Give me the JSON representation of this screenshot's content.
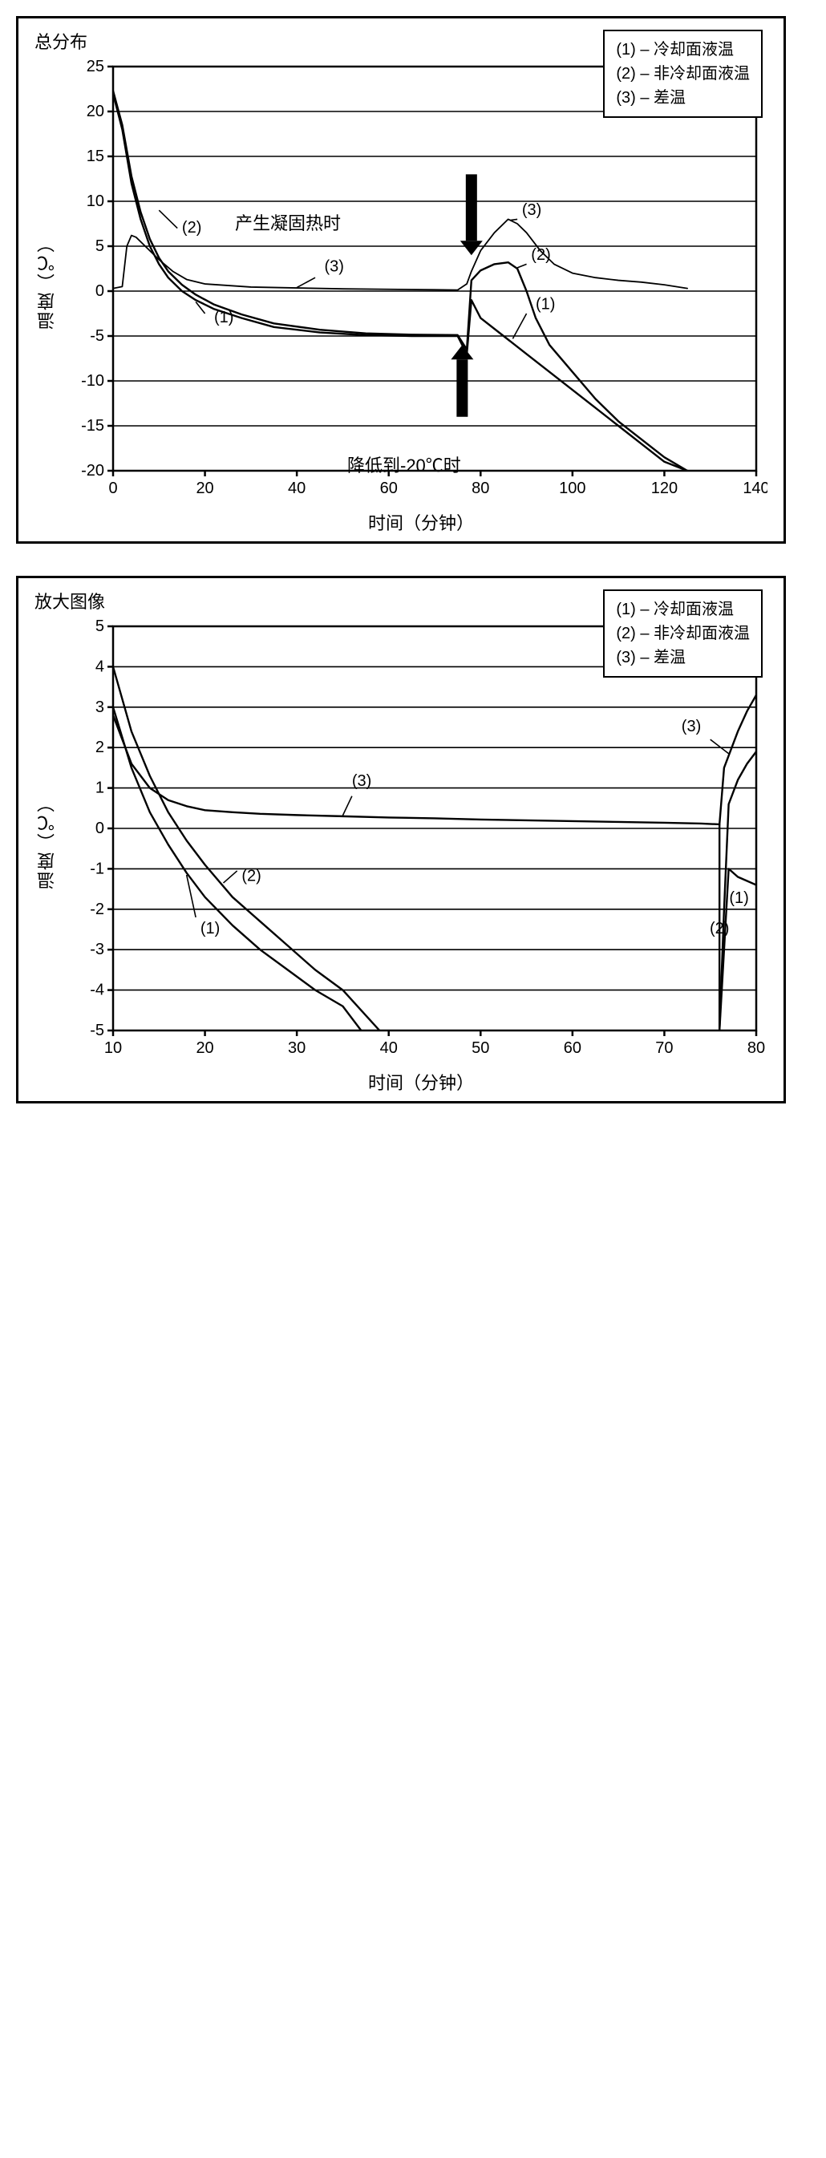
{
  "colors": {
    "axis": "#000000",
    "grid": "#000000",
    "series": "#000000",
    "bg": "#ffffff"
  },
  "stroke": {
    "axis": 2.5,
    "grid": 1.6,
    "series": 2.4,
    "series3_top": 1.8
  },
  "chart_top": {
    "title": "总分布",
    "xlabel": "时间（分钟）",
    "ylabel": "温度（℃）",
    "xlim": [
      0,
      140
    ],
    "xtick_step": 20,
    "ylim": [
      -20,
      25
    ],
    "ytick_step": 5,
    "legend": {
      "items": [
        "(1) – 冷却面液温",
        "(2) – 非冷却面液温",
        "(3) – 差温"
      ]
    },
    "annotations": {
      "a1": "产生凝固热时",
      "a2": "降低到-20℃时"
    },
    "series_labels": {
      "s1a": "(1)",
      "s1b": "(1)",
      "s2a": "(2)",
      "s2b": "(2)",
      "s3a": "(3)",
      "s3b": "(3)"
    },
    "series1": [
      [
        0,
        22
      ],
      [
        2,
        18
      ],
      [
        4,
        12
      ],
      [
        6,
        8
      ],
      [
        8,
        5
      ],
      [
        10,
        3
      ],
      [
        12,
        1.5
      ],
      [
        15,
        0
      ],
      [
        18,
        -1
      ],
      [
        22,
        -2
      ],
      [
        28,
        -3
      ],
      [
        35,
        -4
      ],
      [
        45,
        -4.6
      ],
      [
        55,
        -4.9
      ],
      [
        65,
        -5
      ],
      [
        75,
        -5
      ],
      [
        77,
        -7
      ],
      [
        78,
        -1
      ],
      [
        80,
        -3
      ],
      [
        85,
        -5
      ],
      [
        90,
        -7
      ],
      [
        95,
        -9
      ],
      [
        100,
        -11
      ],
      [
        105,
        -13
      ],
      [
        110,
        -15
      ],
      [
        115,
        -17
      ],
      [
        120,
        -19
      ],
      [
        125,
        -20
      ]
    ],
    "series2": [
      [
        0,
        22.3
      ],
      [
        2,
        18.5
      ],
      [
        4,
        12.8
      ],
      [
        6,
        8.8
      ],
      [
        8,
        5.8
      ],
      [
        10,
        3.7
      ],
      [
        12,
        2.2
      ],
      [
        15,
        0.7
      ],
      [
        18,
        -0.4
      ],
      [
        22,
        -1.5
      ],
      [
        28,
        -2.6
      ],
      [
        35,
        -3.6
      ],
      [
        45,
        -4.3
      ],
      [
        55,
        -4.7
      ],
      [
        65,
        -4.85
      ],
      [
        75,
        -4.9
      ],
      [
        77,
        -6.5
      ],
      [
        78,
        1.2
      ],
      [
        80,
        2.3
      ],
      [
        83,
        3
      ],
      [
        86,
        3.2
      ],
      [
        88,
        2.5
      ],
      [
        90,
        0
      ],
      [
        92,
        -3
      ],
      [
        95,
        -6
      ],
      [
        100,
        -9
      ],
      [
        105,
        -12
      ],
      [
        110,
        -14.5
      ],
      [
        115,
        -16.5
      ],
      [
        120,
        -18.5
      ],
      [
        125,
        -20
      ]
    ],
    "series3": [
      [
        0,
        0.3
      ],
      [
        2,
        0.5
      ],
      [
        3,
        5
      ],
      [
        4,
        6.2
      ],
      [
        5,
        6
      ],
      [
        7,
        5
      ],
      [
        10,
        3.5
      ],
      [
        13,
        2.2
      ],
      [
        16,
        1.3
      ],
      [
        20,
        0.8
      ],
      [
        30,
        0.45
      ],
      [
        40,
        0.35
      ],
      [
        50,
        0.25
      ],
      [
        60,
        0.2
      ],
      [
        70,
        0.15
      ],
      [
        75,
        0.12
      ],
      [
        77,
        0.8
      ],
      [
        78,
        2.2
      ],
      [
        80,
        4.5
      ],
      [
        83,
        6.5
      ],
      [
        86,
        8
      ],
      [
        88,
        7.5
      ],
      [
        90,
        6.5
      ],
      [
        93,
        4.5
      ],
      [
        96,
        3
      ],
      [
        100,
        2
      ],
      [
        105,
        1.5
      ],
      [
        110,
        1.2
      ],
      [
        115,
        1
      ],
      [
        120,
        0.7
      ],
      [
        125,
        0.3
      ]
    ]
  },
  "chart_bottom": {
    "title": "放大图像",
    "xlabel": "时间（分钟）",
    "ylabel": "温度（℃）",
    "xlim": [
      10,
      80
    ],
    "xtick_step": 10,
    "ylim": [
      -5,
      5
    ],
    "ytick_step": 1,
    "legend": {
      "items": [
        "(1) – 冷却面液温",
        "(2) – 非冷却面液温",
        "(3) – 差温"
      ]
    },
    "series_labels": {
      "s1a": "(1)",
      "s1b": "(1)",
      "s2a": "(2)",
      "s2b": "(2)",
      "s3a": "(3)",
      "s3b": "(3)"
    },
    "series1": [
      [
        10,
        3
      ],
      [
        12,
        1.5
      ],
      [
        14,
        0.4
      ],
      [
        16,
        -0.4
      ],
      [
        18,
        -1.1
      ],
      [
        20,
        -1.7
      ],
      [
        23,
        -2.4
      ],
      [
        26,
        -3
      ],
      [
        29,
        -3.5
      ],
      [
        32,
        -4
      ],
      [
        35,
        -4.4
      ],
      [
        37,
        -5
      ]
    ],
    "series2": [
      [
        10,
        4
      ],
      [
        12,
        2.4
      ],
      [
        14,
        1.3
      ],
      [
        16,
        0.4
      ],
      [
        18,
        -0.3
      ],
      [
        20,
        -0.9
      ],
      [
        23,
        -1.7
      ],
      [
        26,
        -2.3
      ],
      [
        29,
        -2.9
      ],
      [
        32,
        -3.5
      ],
      [
        35,
        -4
      ],
      [
        37,
        -4.5
      ],
      [
        39,
        -5
      ]
    ],
    "series3": [
      [
        10,
        2.8
      ],
      [
        12,
        1.6
      ],
      [
        14,
        1.0
      ],
      [
        16,
        0.7
      ],
      [
        18,
        0.55
      ],
      [
        20,
        0.45
      ],
      [
        23,
        0.4
      ],
      [
        26,
        0.36
      ],
      [
        30,
        0.33
      ],
      [
        35,
        0.3
      ],
      [
        40,
        0.27
      ],
      [
        45,
        0.25
      ],
      [
        50,
        0.22
      ],
      [
        55,
        0.2
      ],
      [
        60,
        0.18
      ],
      [
        65,
        0.16
      ],
      [
        70,
        0.14
      ],
      [
        74,
        0.12
      ],
      [
        76,
        0.1
      ]
    ],
    "series1b": [
      [
        76,
        -5
      ],
      [
        77,
        -1
      ],
      [
        78,
        -1.2
      ],
      [
        79,
        -1.3
      ],
      [
        80,
        -1.4
      ]
    ],
    "series2b": [
      [
        76,
        -5
      ],
      [
        76.5,
        -2
      ],
      [
        77,
        0.6
      ],
      [
        78,
        1.2
      ],
      [
        79,
        1.6
      ],
      [
        80,
        1.9
      ]
    ],
    "series3b": [
      [
        76,
        0.1
      ],
      [
        76.5,
        1.5
      ],
      [
        77,
        1.8
      ],
      [
        78,
        2.4
      ],
      [
        79,
        2.9
      ],
      [
        80,
        3.3
      ]
    ]
  }
}
